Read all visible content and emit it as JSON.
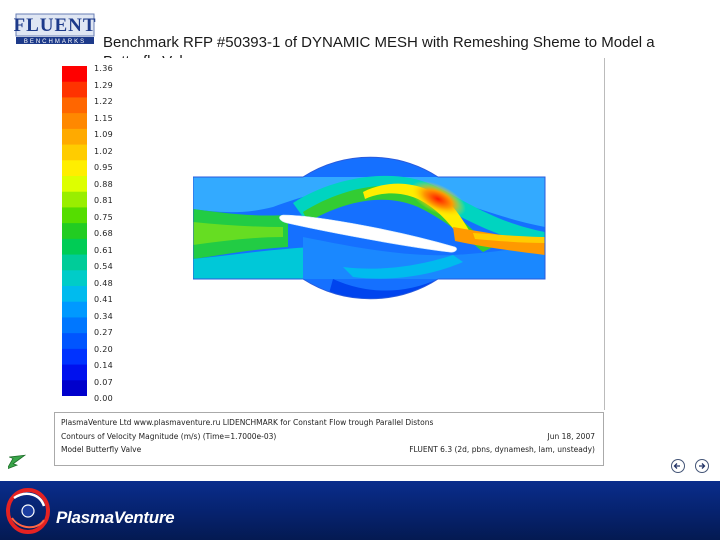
{
  "header": {
    "logo_text": "FLUENT",
    "logo_subtext": "BENCHMARKS",
    "title_line1": "Benchmark  RFP #50393-1 of  DYNAMIC MESH with Remeshing  Sheme to Model a",
    "title_line2": "Butterfly Valve"
  },
  "colorbar": {
    "labels": [
      "1.36",
      "1.29",
      "1.22",
      "1.15",
      "1.09",
      "1.02",
      "0.95",
      "0.88",
      "0.81",
      "0.75",
      "0.68",
      "0.61",
      "0.54",
      "0.48",
      "0.41",
      "0.34",
      "0.27",
      "0.20",
      "0.14",
      "0.07",
      "0.00"
    ],
    "colors": [
      "#ff0000",
      "#ff3300",
      "#ff6600",
      "#ff8800",
      "#ffaa00",
      "#ffcc00",
      "#ffee00",
      "#ddff00",
      "#99ee00",
      "#55dd00",
      "#22cc22",
      "#00cc55",
      "#00cc99",
      "#00ccc8",
      "#00bbee",
      "#0099ff",
      "#0077ff",
      "#0055ff",
      "#0033ff",
      "#0011ee",
      "#0000cc"
    ]
  },
  "caption": {
    "line1": "PlasmaVenture Ltd www.plasmaventure.ru  LIDENCHMARK for Constant Flow trough Parallel Distons",
    "line2": "Contours of Velocity Magnitude (m/s)  (Time=1.7000e-03)",
    "line3": "Model Butterfly Valve",
    "date": "Jun 18, 2007",
    "solver": "FLUENT 6.3 (2d, pbns, dynamesh, lam, unsteady)"
  },
  "footer": {
    "brand": "PlasmaVenture"
  },
  "icons": {
    "back": "back-arrow-icon",
    "prev": "previous-slide-icon",
    "next": "next-slide-icon"
  },
  "colors": {
    "footer_bg": "#06226d",
    "accent_green": "#3aa64a"
  }
}
